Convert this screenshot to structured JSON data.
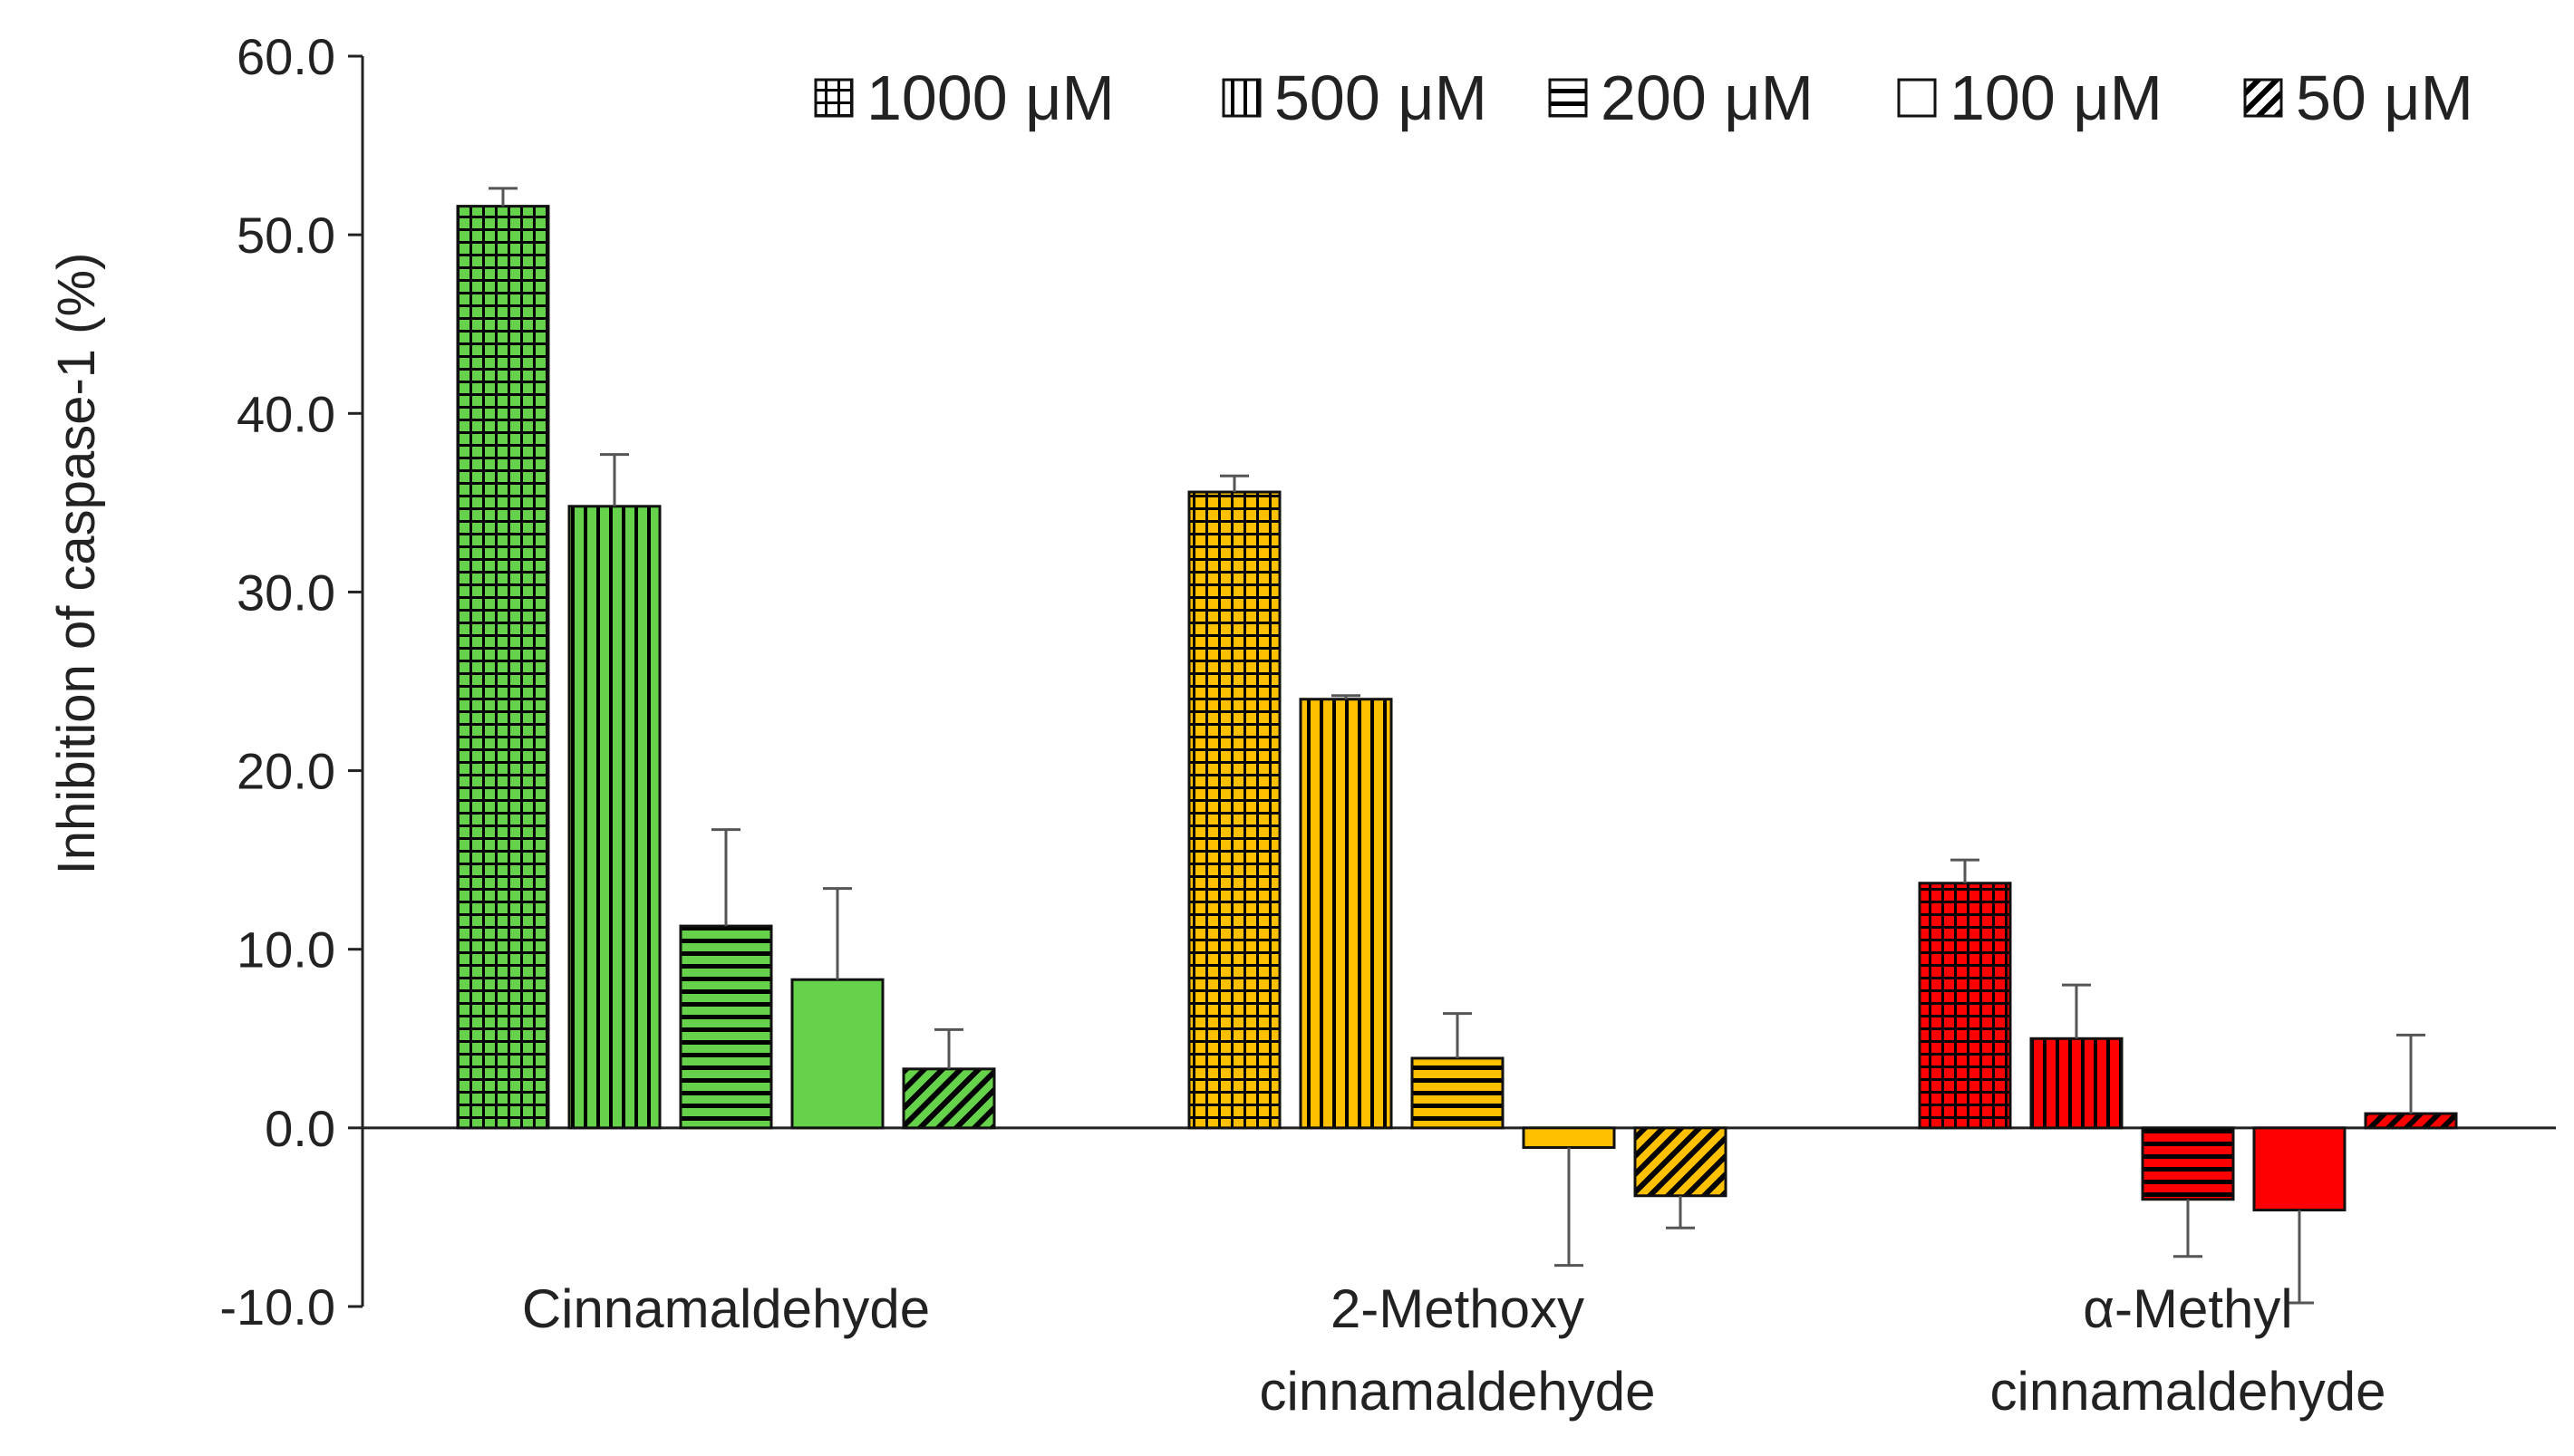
{
  "chart_data": {
    "type": "bar",
    "title": "",
    "xlabel": "",
    "ylabel": "Inhibition of caspase-1 (%)",
    "ylim": [
      -10,
      60
    ],
    "yticks": [
      "60.0",
      "50.0",
      "40.0",
      "30.0",
      "20.0",
      "10.0",
      "0.0",
      "-10.0"
    ],
    "ytick_values": [
      60,
      50,
      40,
      30,
      20,
      10,
      0,
      -10
    ],
    "legend_position": "top-right",
    "categories": [
      {
        "lines": [
          "Cinnamaldehyde"
        ],
        "color": "#66d14a"
      },
      {
        "lines": [
          "2-Methoxy",
          "cinnamaldehyde"
        ],
        "color": "#ffc000"
      },
      {
        "lines": [
          "α-Methyl",
          "cinnamaldehyde"
        ],
        "color": "#ff0000"
      }
    ],
    "series": [
      {
        "name": "1000 μM",
        "pattern": "grid",
        "values": [
          51.6,
          35.6,
          13.7
        ],
        "errors": [
          1.0,
          0.9,
          1.3
        ]
      },
      {
        "name": "500 μM",
        "pattern": "vertical",
        "values": [
          34.8,
          24.0,
          5.0
        ],
        "errors": [
          2.9,
          0.2,
          3.0
        ]
      },
      {
        "name": "200 μM",
        "pattern": "horizontal",
        "values": [
          11.3,
          3.9,
          -4.0
        ],
        "errors": [
          5.4,
          2.5,
          3.2
        ]
      },
      {
        "name": "100 μM",
        "pattern": "solid",
        "values": [
          8.3,
          -1.1,
          -4.6
        ],
        "errors": [
          5.1,
          6.6,
          5.2
        ]
      },
      {
        "name": "50 μM",
        "pattern": "diagonal",
        "values": [
          3.3,
          -3.8,
          0.8
        ],
        "errors": [
          2.2,
          1.8,
          4.4
        ]
      }
    ]
  }
}
